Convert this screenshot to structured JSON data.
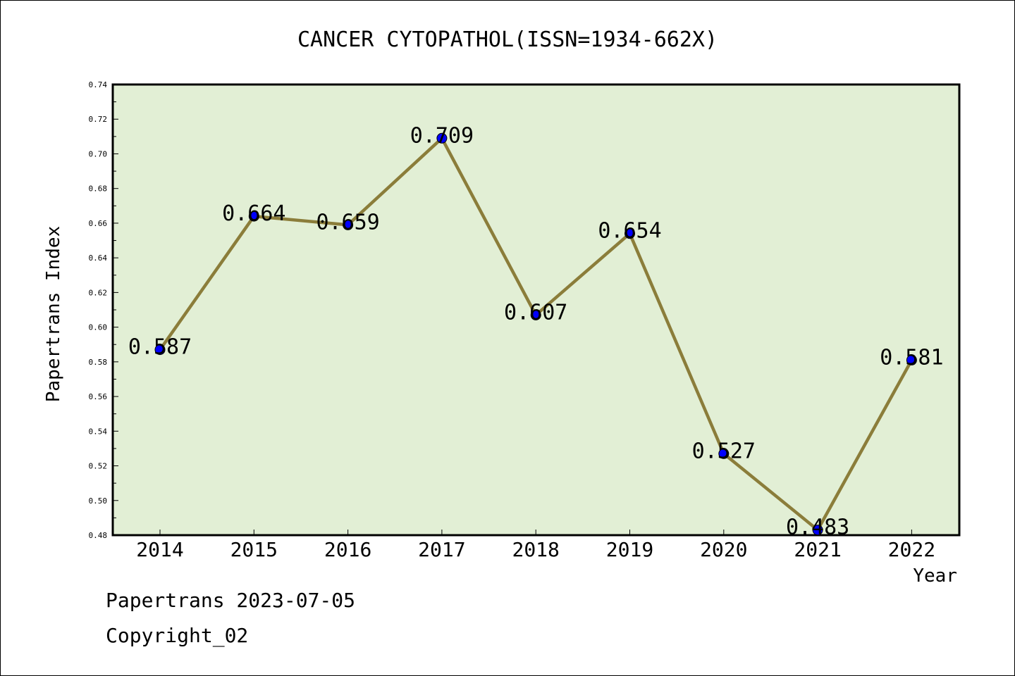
{
  "chart_data": {
    "type": "line",
    "title": "CANCER CYTOPATHOL(ISSN=1934-662X)",
    "xlabel": "Year",
    "ylabel": "Papertrans Index",
    "categories": [
      "2014",
      "2015",
      "2016",
      "2017",
      "2018",
      "2019",
      "2020",
      "2021",
      "2022"
    ],
    "values": [
      0.587,
      0.664,
      0.659,
      0.709,
      0.607,
      0.654,
      0.527,
      0.483,
      0.581
    ],
    "data_labels": [
      "0.587",
      "0.664",
      "0.659",
      "0.709",
      "0.607",
      "0.654",
      "0.527",
      "0.483",
      "0.581"
    ],
    "ylim": [
      0.48,
      0.74
    ],
    "yticks": [
      "0.48",
      "0.50",
      "0.52",
      "0.54",
      "0.56",
      "0.58",
      "0.60",
      "0.62",
      "0.64",
      "0.66",
      "0.68",
      "0.70",
      "0.72",
      "0.74"
    ],
    "grid": false,
    "colors": {
      "plot_background": "#e2efd5",
      "line": "#8b7d3a",
      "marker": "#0000ff"
    }
  },
  "footer": {
    "date_line": "Papertrans 2023-07-05",
    "copyright": "Copyright_02"
  }
}
